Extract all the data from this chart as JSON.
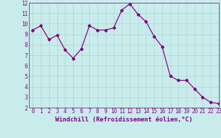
{
  "x": [
    0,
    1,
    2,
    3,
    4,
    5,
    6,
    7,
    8,
    9,
    10,
    11,
    12,
    13,
    14,
    15,
    16,
    17,
    18,
    19,
    20,
    21,
    22,
    23
  ],
  "y": [
    9.4,
    9.8,
    8.5,
    8.9,
    7.5,
    6.7,
    7.6,
    9.8,
    9.4,
    9.4,
    9.6,
    11.3,
    11.9,
    10.9,
    10.2,
    8.8,
    7.8,
    5.0,
    4.6,
    4.6,
    3.8,
    3.0,
    2.5,
    2.4
  ],
  "line_color": "#800080",
  "marker": "D",
  "marker_size": 2,
  "bg_color": "#c8ecec",
  "grid_color": "#b0d0d0",
  "xlabel": "Windchill (Refroidissement éolien,°C)",
  "ylim": [
    2,
    12
  ],
  "xlim": [
    -0.5,
    23
  ],
  "yticks": [
    2,
    3,
    4,
    5,
    6,
    7,
    8,
    9,
    10,
    11,
    12
  ],
  "xticks": [
    0,
    1,
    2,
    3,
    4,
    5,
    6,
    7,
    8,
    9,
    10,
    11,
    12,
    13,
    14,
    15,
    16,
    17,
    18,
    19,
    20,
    21,
    22,
    23
  ],
  "tick_label_fontsize": 5.5,
  "xlabel_fontsize": 6.5,
  "label_color": "#800080"
}
